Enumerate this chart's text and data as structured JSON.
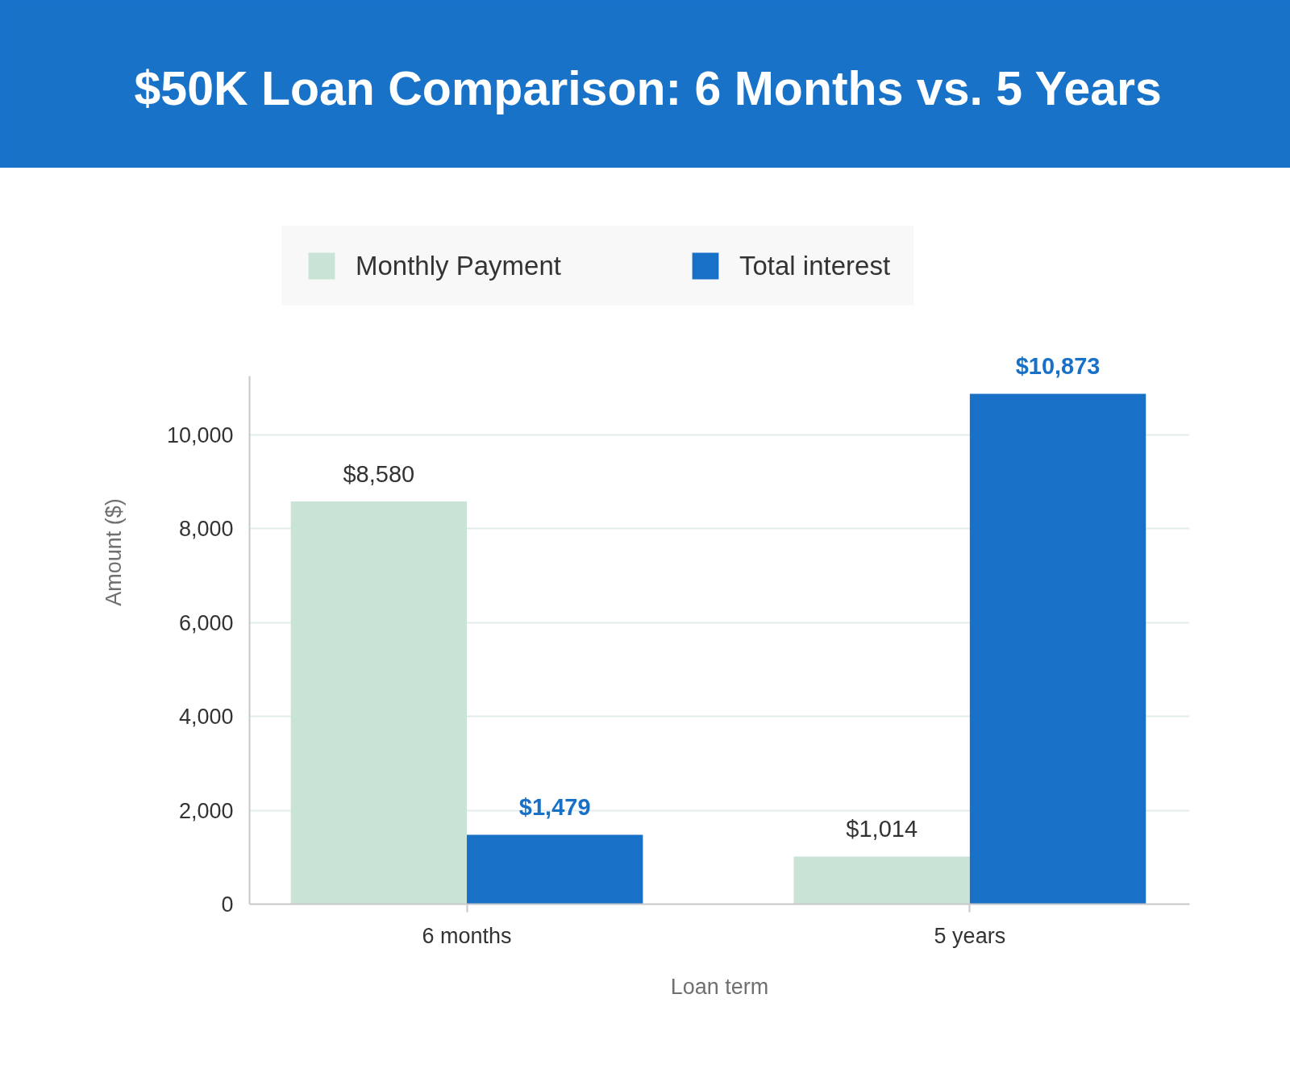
{
  "chart_data": {
    "type": "bar",
    "title": "$50K Loan Comparison: 6 Months vs. 5 Years",
    "xlabel": "Loan term",
    "ylabel": "Amount ($)",
    "categories": [
      "6 months",
      "5 years"
    ],
    "series": [
      {
        "name": "Monthly Payment",
        "color": "#cae3d7",
        "values": [
          8580,
          1014
        ],
        "value_labels": [
          "$8,580",
          "$1,014"
        ]
      },
      {
        "name": "Total interest",
        "color": "#1871c7",
        "values": [
          1479,
          10873
        ],
        "value_labels": [
          "$1,479",
          "$10,873"
        ]
      }
    ],
    "ylim": [
      0,
      11250
    ],
    "yticks": [
      0,
      {
        "value": 2000,
        "label": "2,000"
      },
      {
        "value": 4000,
        "label": "4,000"
      },
      {
        "value": 6000,
        "label": "6,000"
      },
      {
        "value": 8000,
        "label": "8,000"
      },
      {
        "value": 10000,
        "label": "10,000"
      }
    ],
    "grid": "y",
    "legend": "top"
  }
}
